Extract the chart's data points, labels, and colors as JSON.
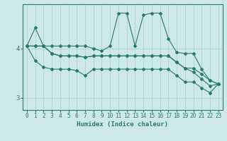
{
  "xlabel": "Humidex (Indice chaleur)",
  "ylabel": "",
  "background_color": "#cce8e8",
  "line_color": "#2a7a6a",
  "grid_color": "#aacfcf",
  "xlim": [
    -0.5,
    23.5
  ],
  "ylim": [
    2.75,
    4.9
  ],
  "yticks": [
    3,
    4
  ],
  "xticks": [
    0,
    1,
    2,
    3,
    4,
    5,
    6,
    7,
    8,
    9,
    10,
    11,
    12,
    13,
    14,
    15,
    16,
    17,
    18,
    19,
    20,
    21,
    22,
    23
  ],
  "series": [
    [
      4.05,
      4.42,
      4.05,
      4.05,
      4.05,
      4.05,
      4.05,
      4.05,
      4.0,
      3.95,
      4.05,
      4.72,
      4.72,
      4.05,
      4.68,
      4.72,
      4.72,
      4.2,
      3.92,
      3.9,
      3.9,
      3.58,
      3.35,
      3.28
    ],
    [
      4.05,
      4.05,
      4.05,
      3.9,
      3.85,
      3.85,
      3.85,
      3.82,
      3.85,
      3.85,
      3.85,
      3.85,
      3.85,
      3.85,
      3.85,
      3.85,
      3.85,
      3.85,
      3.72,
      3.6,
      3.6,
      3.48,
      3.35,
      3.28
    ],
    [
      4.05,
      3.75,
      3.62,
      3.58,
      3.58,
      3.58,
      3.55,
      3.45,
      3.58,
      3.58,
      3.58,
      3.58,
      3.58,
      3.58,
      3.58,
      3.58,
      3.58,
      3.58,
      3.45,
      3.32,
      3.32,
      3.2,
      3.1,
      3.28
    ],
    [
      4.05,
      4.05,
      4.05,
      3.9,
      3.85,
      3.85,
      3.85,
      3.82,
      3.85,
      3.85,
      3.85,
      3.85,
      3.85,
      3.85,
      3.85,
      3.85,
      3.85,
      3.85,
      3.72,
      3.6,
      3.52,
      3.38,
      3.24,
      3.28
    ]
  ]
}
